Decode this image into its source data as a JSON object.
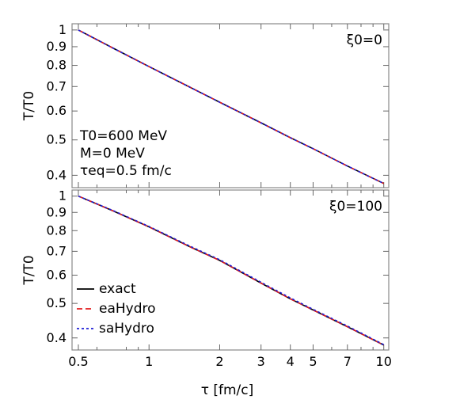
{
  "chart_data": [
    {
      "type": "line",
      "panel_label": "ξ0=0",
      "ylabel": "T/T0",
      "xlabel": "τ [fm/c]",
      "xscale": "log",
      "yscale": "log",
      "xlim": [
        0.47,
        10.5
      ],
      "ylim": [
        0.37,
        1.04
      ],
      "yticks": [
        0.4,
        0.5,
        0.6,
        0.7,
        0.8,
        0.9,
        1
      ],
      "params": [
        "T0=600 MeV",
        "M=0 MeV",
        "τeq=0.5 fm/c"
      ],
      "series": [
        {
          "name": "exact",
          "color": "#000000",
          "dash": "solid",
          "x": [
            0.5,
            0.7,
            1,
            1.5,
            2,
            3,
            4,
            5,
            7,
            10
          ],
          "y": [
            1.0,
            0.893,
            0.794,
            0.696,
            0.634,
            0.557,
            0.507,
            0.473,
            0.424,
            0.38
          ]
        },
        {
          "name": "eaHydro",
          "color": "#e31a1c",
          "dash": "long",
          "x": [
            0.5,
            0.7,
            1,
            1.5,
            2,
            3,
            4,
            5,
            7,
            10
          ],
          "y": [
            1.0,
            0.893,
            0.794,
            0.696,
            0.634,
            0.557,
            0.507,
            0.473,
            0.424,
            0.38
          ]
        },
        {
          "name": "saHydro",
          "color": "#1f1fd6",
          "dash": "short",
          "x": [
            0.5,
            0.7,
            1,
            1.5,
            2,
            3,
            4,
            5,
            7,
            10
          ],
          "y": [
            1.0,
            0.893,
            0.794,
            0.696,
            0.634,
            0.557,
            0.507,
            0.473,
            0.424,
            0.38
          ]
        }
      ]
    },
    {
      "type": "line",
      "panel_label": "ξ0=100",
      "ylabel": "T/T0",
      "xlabel": "τ [fm/c]",
      "xscale": "log",
      "yscale": "log",
      "xlim": [
        0.47,
        10.5
      ],
      "ylim": [
        0.37,
        1.04
      ],
      "xticks": [
        0.5,
        1,
        2,
        3,
        4,
        5,
        7,
        10
      ],
      "yticks": [
        0.4,
        0.5,
        0.6,
        0.7,
        0.8,
        0.9,
        1
      ],
      "legend": "lower-left",
      "series": [
        {
          "name": "exact",
          "color": "#000000",
          "dash": "solid",
          "x": [
            0.5,
            0.7,
            1,
            1.5,
            2,
            3,
            4,
            5,
            7,
            10
          ],
          "y": [
            1.0,
            0.91,
            0.82,
            0.72,
            0.66,
            0.57,
            0.515,
            0.479,
            0.43,
            0.382
          ]
        },
        {
          "name": "eaHydro",
          "color": "#e31a1c",
          "dash": "long",
          "x": [
            0.5,
            0.7,
            1,
            1.5,
            2,
            3,
            4,
            5,
            7,
            10
          ],
          "y": [
            1.0,
            0.91,
            0.82,
            0.72,
            0.66,
            0.57,
            0.515,
            0.479,
            0.43,
            0.382
          ]
        },
        {
          "name": "saHydro",
          "color": "#1f1fd6",
          "dash": "short",
          "x": [
            0.5,
            0.7,
            1,
            1.5,
            2,
            3,
            4,
            5,
            7,
            10
          ],
          "y": [
            1.0,
            0.912,
            0.822,
            0.723,
            0.663,
            0.573,
            0.518,
            0.481,
            0.432,
            0.383
          ]
        }
      ]
    }
  ]
}
